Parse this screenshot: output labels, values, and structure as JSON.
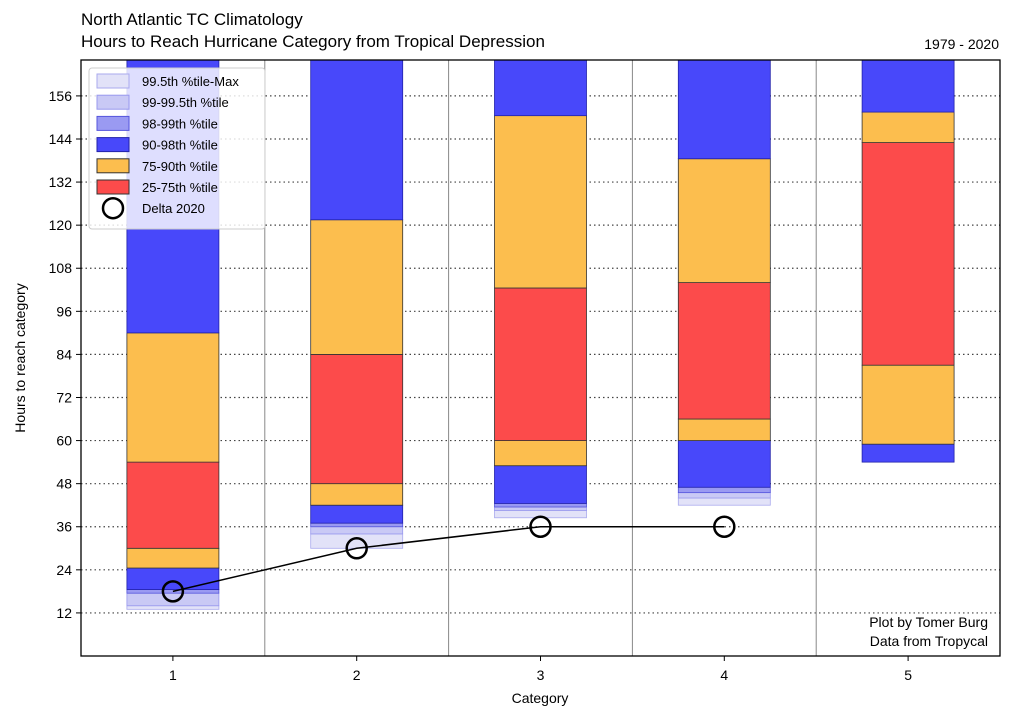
{
  "header": {
    "title_line1": "North Atlantic TC Climatology",
    "title_line2": "Hours to Reach Hurricane Category from Tropical Depression",
    "period": "1979 - 2020"
  },
  "credits": {
    "line1": "Plot by Tomer Burg",
    "line2": "Data from Tropycal"
  },
  "chart_data": {
    "type": "bar",
    "stacked": true,
    "title": "Hours to Reach Hurricane Category from Tropical Depression",
    "xlabel": "Category",
    "ylabel": "Hours to reach category",
    "categories": [
      "1",
      "2",
      "3",
      "4",
      "5"
    ],
    "ylim": [
      0,
      166
    ],
    "yticks": [
      12,
      24,
      36,
      48,
      60,
      72,
      84,
      96,
      108,
      120,
      132,
      144,
      156
    ],
    "grid": "horizontal dotted",
    "legend_position": "top-left",
    "series": [
      {
        "name": "99.5th %tile-Max",
        "color": "#e2e2f8",
        "edge": "#aaaaee",
        "ranges": [
          [
            13,
            14
          ],
          [
            30,
            34
          ],
          [
            38.5,
            40.5
          ],
          [
            42,
            44
          ],
          null
        ]
      },
      {
        "name": "99-99.5th %tile",
        "color": "#c9c9f5",
        "edge": "#9999ee",
        "ranges": [
          [
            14,
            17.5
          ],
          [
            34,
            36
          ],
          [
            40.5,
            41.5
          ],
          [
            44,
            45.5
          ],
          null
        ]
      },
      {
        "name": "98-99th %tile",
        "color": "#9a9af2",
        "edge": "#5555dd",
        "ranges": [
          [
            17.5,
            18.5
          ],
          [
            36,
            37
          ],
          [
            41.5,
            42.5
          ],
          [
            45.5,
            47
          ],
          null
        ]
      },
      {
        "name": "90-98th %tile",
        "color": "#4848fa",
        "edge": "#2222aa",
        "ranges": [
          [
            18.5,
            24.5
          ],
          [
            37,
            42
          ],
          [
            42.5,
            53
          ],
          [
            47,
            60
          ],
          [
            54,
            59
          ]
        ]
      },
      {
        "name": "75-90th %tile",
        "color": "#fcbe4e",
        "edge": "#333333",
        "ranges": [
          [
            24.5,
            30
          ],
          [
            42,
            48
          ],
          [
            53,
            60
          ],
          [
            60,
            66
          ],
          [
            59,
            81
          ]
        ]
      },
      {
        "name": "25-75th %tile",
        "color": "#fc4b4b",
        "edge": "#333333",
        "ranges": [
          [
            30,
            54
          ],
          [
            48,
            84
          ],
          [
            60,
            102.5
          ],
          [
            66,
            104
          ],
          [
            81,
            143
          ]
        ]
      },
      {
        "name": "75-90th %tile",
        "legend": false,
        "color": "#fcbe4e",
        "edge": "#333333",
        "ranges": [
          [
            54,
            90
          ],
          [
            84,
            121.5
          ],
          [
            102.5,
            150.5
          ],
          [
            104,
            138.5
          ],
          [
            143,
            151.5
          ]
        ]
      },
      {
        "name": "90-98th %tile",
        "legend": false,
        "color": "#4848fa",
        "edge": "#2222aa",
        "ranges": [
          [
            90,
            166
          ],
          [
            121.5,
            166
          ],
          [
            150.5,
            166
          ],
          [
            138.5,
            166
          ],
          [
            151.5,
            166
          ]
        ]
      }
    ],
    "legend": [
      "99.5th %tile-Max",
      "99-99.5th %tile",
      "98-99th %tile",
      "90-98th %tile",
      "75-90th %tile",
      "25-75th %tile",
      "Delta 2020"
    ],
    "line_series": {
      "name": "Delta 2020",
      "x": [
        "1",
        "2",
        "3",
        "4"
      ],
      "y": [
        18,
        30,
        36,
        36
      ]
    }
  }
}
